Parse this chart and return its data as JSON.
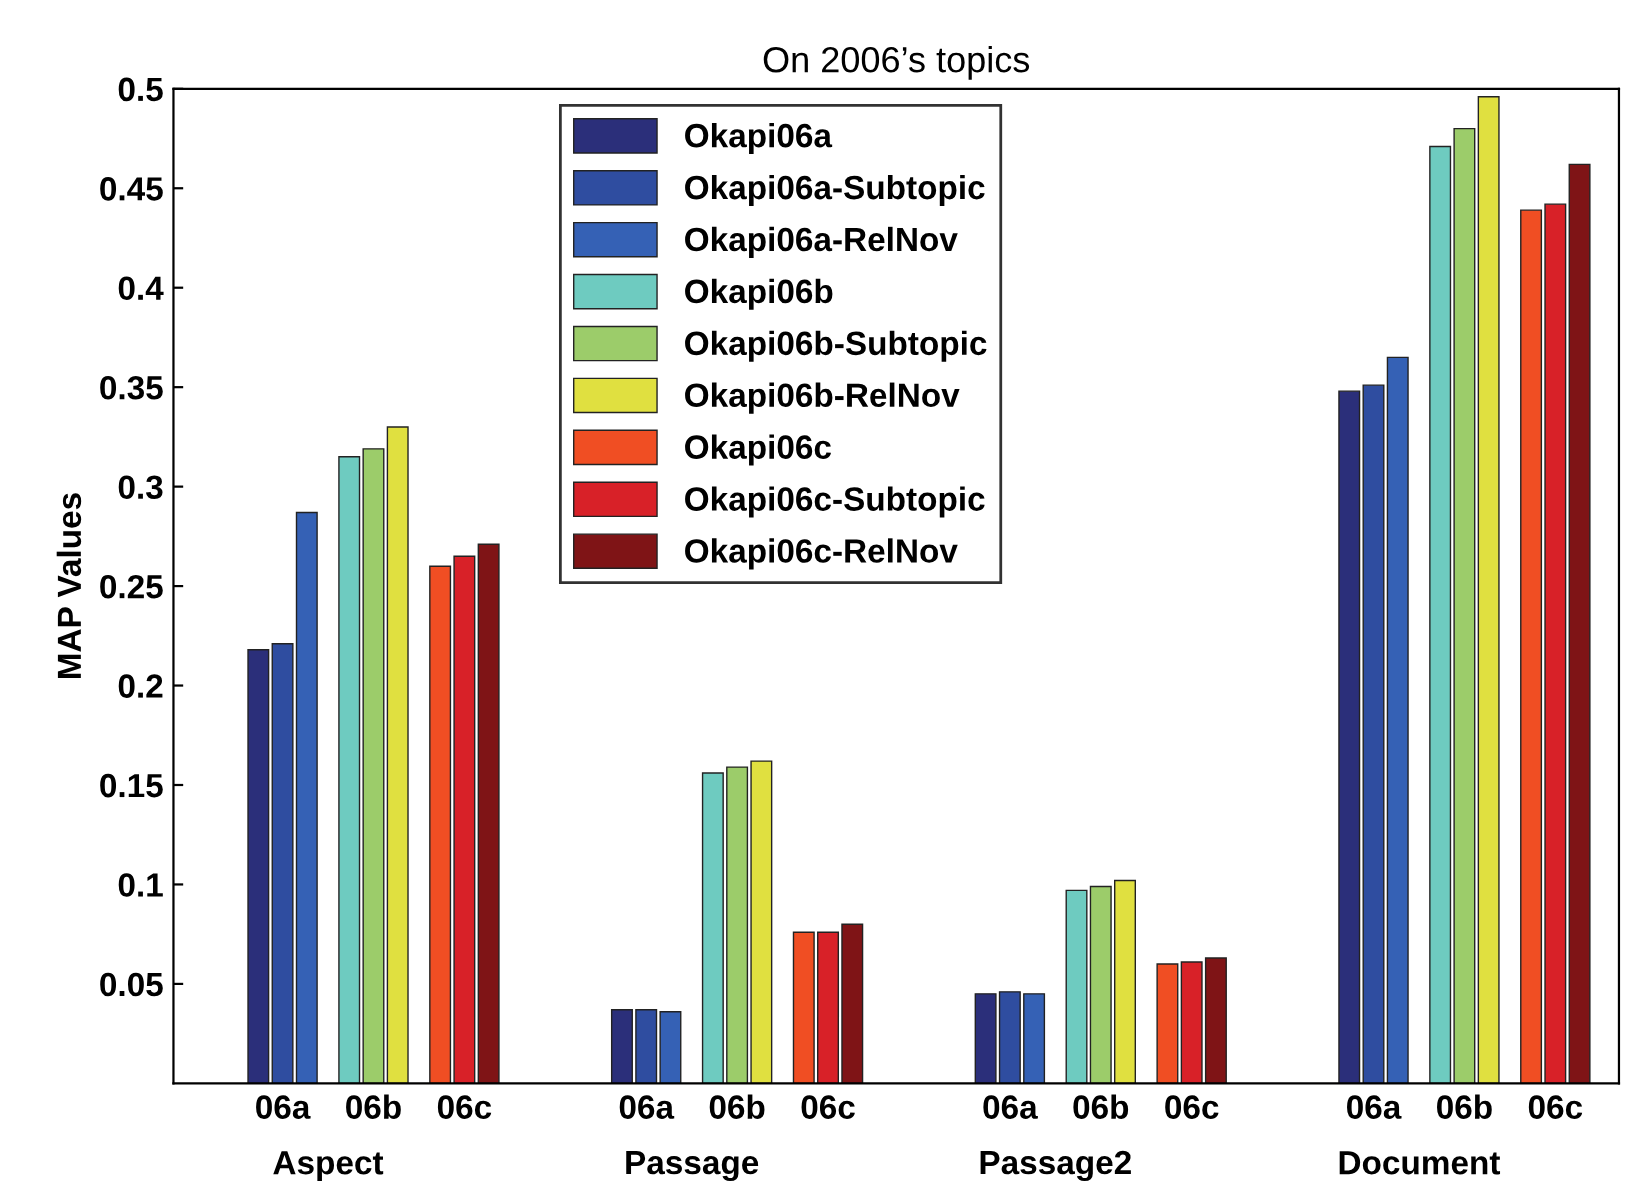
{
  "chart_data": {
    "type": "bar",
    "title": "On 2006’s topics",
    "ylabel": "MAP Values",
    "categories": [
      "06a",
      "06b",
      "06c",
      "06a",
      "06b",
      "06c",
      "06a",
      "06b",
      "06c",
      "06a",
      "06b",
      "06c"
    ],
    "annotations": [
      "Aspect",
      "Passage",
      "Passage2",
      "Document"
    ],
    "series": [
      {
        "name": "Okapi06a",
        "color": "#2b2f7a",
        "values": [
          0.218,
          null,
          null,
          0.037,
          null,
          null,
          0.045,
          null,
          null,
          0.348,
          null,
          null
        ]
      },
      {
        "name": "Okapi06a-Subtopic",
        "color": "#2f4da0",
        "values": [
          0.221,
          null,
          null,
          0.037,
          null,
          null,
          0.046,
          null,
          null,
          0.351,
          null,
          null
        ]
      },
      {
        "name": "Okapi06a-RelNov",
        "color": "#3561b5",
        "values": [
          0.287,
          null,
          null,
          0.036,
          null,
          null,
          0.045,
          null,
          null,
          0.365,
          null,
          null
        ]
      },
      {
        "name": "Okapi06b",
        "color": "#6ecbc0",
        "values": [
          null,
          0.315,
          null,
          null,
          0.156,
          null,
          null,
          0.097,
          null,
          null,
          0.471,
          null
        ]
      },
      {
        "name": "Okapi06b-Subtopic",
        "color": "#9ccc6a",
        "values": [
          null,
          0.319,
          null,
          null,
          0.159,
          null,
          null,
          0.099,
          null,
          null,
          0.48,
          null
        ]
      },
      {
        "name": "Okapi06b-RelNov",
        "color": "#e0e040",
        "values": [
          null,
          0.33,
          null,
          null,
          0.162,
          null,
          null,
          0.102,
          null,
          null,
          0.496,
          null
        ]
      },
      {
        "name": "Okapi06c",
        "color": "#f04e23",
        "values": [
          null,
          null,
          0.26,
          null,
          null,
          0.076,
          null,
          null,
          0.06,
          null,
          null,
          0.439
        ]
      },
      {
        "name": "Okapi06c-Subtopic",
        "color": "#d82128",
        "values": [
          null,
          null,
          0.265,
          null,
          null,
          0.076,
          null,
          null,
          0.061,
          null,
          null,
          0.442
        ]
      },
      {
        "name": "Okapi06c-RelNov",
        "color": "#7f1416",
        "values": [
          null,
          null,
          0.271,
          null,
          null,
          0.08,
          null,
          null,
          0.063,
          null,
          null,
          0.462
        ]
      }
    ],
    "ylim": [
      0,
      0.5
    ],
    "yticks": [
      0.05,
      0.1,
      0.15,
      0.2,
      0.25,
      0.3,
      0.35,
      0.4,
      0.45,
      0.5
    ],
    "grid": false,
    "legend": "top"
  }
}
